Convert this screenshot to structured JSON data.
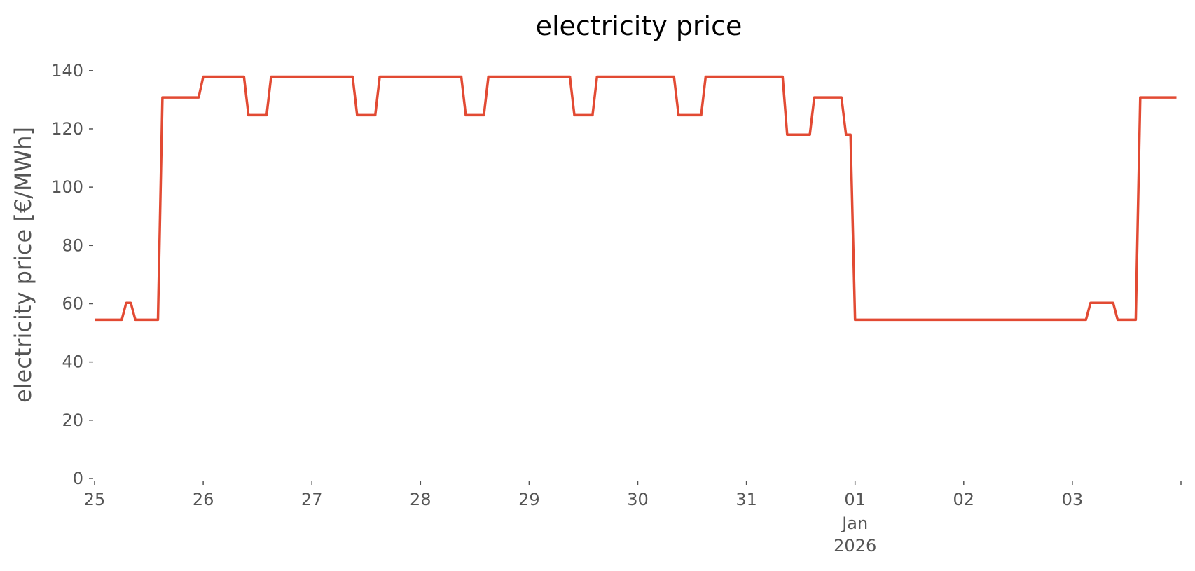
{
  "chart_data": {
    "type": "line",
    "title": "electricity price",
    "xlabel": "",
    "ylabel": "electricity price [€/MWh]",
    "ylim": [
      0,
      145
    ],
    "xlim": [
      "2025-12-25T00:00",
      "2026-01-04T00:00"
    ],
    "grid": false,
    "legend": "none",
    "yticks": [
      0,
      20,
      40,
      60,
      80,
      100,
      120,
      140
    ],
    "xticks": [
      {
        "x": "2025-12-25T00:00",
        "label": "25"
      },
      {
        "x": "2025-12-26T00:00",
        "label": "26"
      },
      {
        "x": "2025-12-27T00:00",
        "label": "27"
      },
      {
        "x": "2025-12-28T00:00",
        "label": "28"
      },
      {
        "x": "2025-12-29T00:00",
        "label": "29"
      },
      {
        "x": "2025-12-30T00:00",
        "label": "30"
      },
      {
        "x": "2025-12-31T00:00",
        "label": "31"
      },
      {
        "x": "2026-01-01T00:00",
        "label": "01",
        "sublabels": [
          "Jan",
          "2026"
        ]
      },
      {
        "x": "2026-01-02T00:00",
        "label": "02"
      },
      {
        "x": "2026-01-03T00:00",
        "label": "03"
      },
      {
        "x": "2026-01-04T00:00",
        "label": ""
      }
    ],
    "series": [
      {
        "color": "#e24a33",
        "points": [
          [
            "2025-12-25T00:00",
            54.5
          ],
          [
            "2025-12-25T06:00",
            54.5
          ],
          [
            "2025-12-25T07:00",
            60.3
          ],
          [
            "2025-12-25T08:00",
            60.3
          ],
          [
            "2025-12-25T09:00",
            54.5
          ],
          [
            "2025-12-25T14:00",
            54.5
          ],
          [
            "2025-12-25T15:00",
            130.8
          ],
          [
            "2025-12-25T23:00",
            130.8
          ],
          [
            "2025-12-26T00:00",
            137.9
          ],
          [
            "2025-12-26T09:00",
            137.9
          ],
          [
            "2025-12-26T10:00",
            124.7
          ],
          [
            "2025-12-26T14:00",
            124.7
          ],
          [
            "2025-12-26T15:00",
            137.9
          ],
          [
            "2025-12-27T09:00",
            137.9
          ],
          [
            "2025-12-27T10:00",
            124.7
          ],
          [
            "2025-12-27T14:00",
            124.7
          ],
          [
            "2025-12-27T15:00",
            137.9
          ],
          [
            "2025-12-28T09:00",
            137.9
          ],
          [
            "2025-12-28T10:00",
            124.7
          ],
          [
            "2025-12-28T14:00",
            124.7
          ],
          [
            "2025-12-28T15:00",
            137.9
          ],
          [
            "2025-12-29T09:00",
            137.9
          ],
          [
            "2025-12-29T10:00",
            124.7
          ],
          [
            "2025-12-29T14:00",
            124.7
          ],
          [
            "2025-12-29T15:00",
            137.9
          ],
          [
            "2025-12-30T08:00",
            137.9
          ],
          [
            "2025-12-30T09:00",
            124.7
          ],
          [
            "2025-12-30T14:00",
            124.7
          ],
          [
            "2025-12-30T15:00",
            137.9
          ],
          [
            "2025-12-31T08:00",
            137.9
          ],
          [
            "2025-12-31T09:00",
            118.0
          ],
          [
            "2025-12-31T14:00",
            118.0
          ],
          [
            "2025-12-31T15:00",
            130.8
          ],
          [
            "2025-12-31T21:00",
            130.8
          ],
          [
            "2025-12-31T22:00",
            118.0
          ],
          [
            "2025-12-31T23:00",
            118.0
          ],
          [
            "2026-01-01T00:00",
            54.5
          ],
          [
            "2026-01-03T03:00",
            54.5
          ],
          [
            "2026-01-03T04:00",
            60.3
          ],
          [
            "2026-01-03T09:00",
            60.3
          ],
          [
            "2026-01-03T10:00",
            54.5
          ],
          [
            "2026-01-03T14:00",
            54.5
          ],
          [
            "2026-01-03T15:00",
            130.8
          ],
          [
            "2026-01-03T23:00",
            130.8
          ]
        ]
      }
    ]
  }
}
